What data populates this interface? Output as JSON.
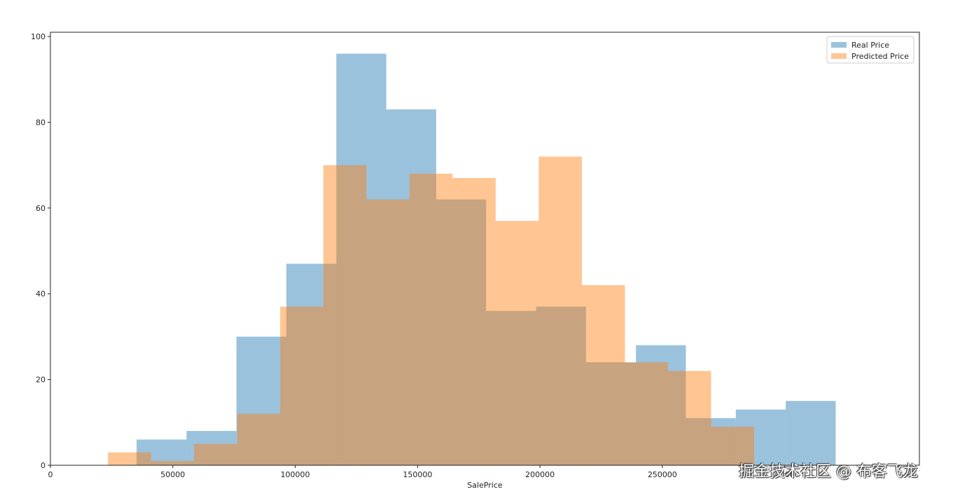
{
  "chart_data": {
    "type": "bar",
    "xlabel": "SalePrice",
    "ylabel": "",
    "xlim": [
      0,
      355000
    ],
    "ylim": [
      0,
      101
    ],
    "x_ticks": [
      0,
      50000,
      100000,
      150000,
      200000,
      250000,
      300000
    ],
    "x_tick_labels": [
      "0",
      "50000",
      "100000",
      "150000",
      "200000",
      "250000",
      "300000"
    ],
    "y_ticks": [
      0,
      20,
      40,
      60,
      80,
      100
    ],
    "y_tick_labels": [
      "0",
      "20",
      "40",
      "60",
      "80",
      "100"
    ],
    "legend_position": "top-right",
    "series": [
      {
        "name": "Real Price",
        "color": "#1f77b4",
        "opacity": 0.45,
        "edges": [
          35200,
          55600,
          76000,
          96400,
          116800,
          137200,
          157600,
          178000,
          198400,
          218800,
          239200,
          259600,
          280000,
          300400,
          320800
        ],
        "counts": [
          6,
          8,
          30,
          47,
          96,
          83,
          62,
          36,
          37,
          24,
          28,
          11,
          13,
          15
        ]
      },
      {
        "name": "Predicted Price",
        "color": "#ff7f0e",
        "opacity": 0.45,
        "edges": [
          23500,
          41100,
          58700,
          76300,
          93900,
          111500,
          129100,
          146700,
          164300,
          181900,
          199500,
          217100,
          234700,
          252300,
          269900,
          287500
        ],
        "counts": [
          3,
          1,
          5,
          12,
          37,
          70,
          62,
          68,
          67,
          57,
          72,
          42,
          24,
          22,
          9
        ]
      }
    ]
  },
  "watermark": "掘金技术社区 @ 布客飞龙"
}
